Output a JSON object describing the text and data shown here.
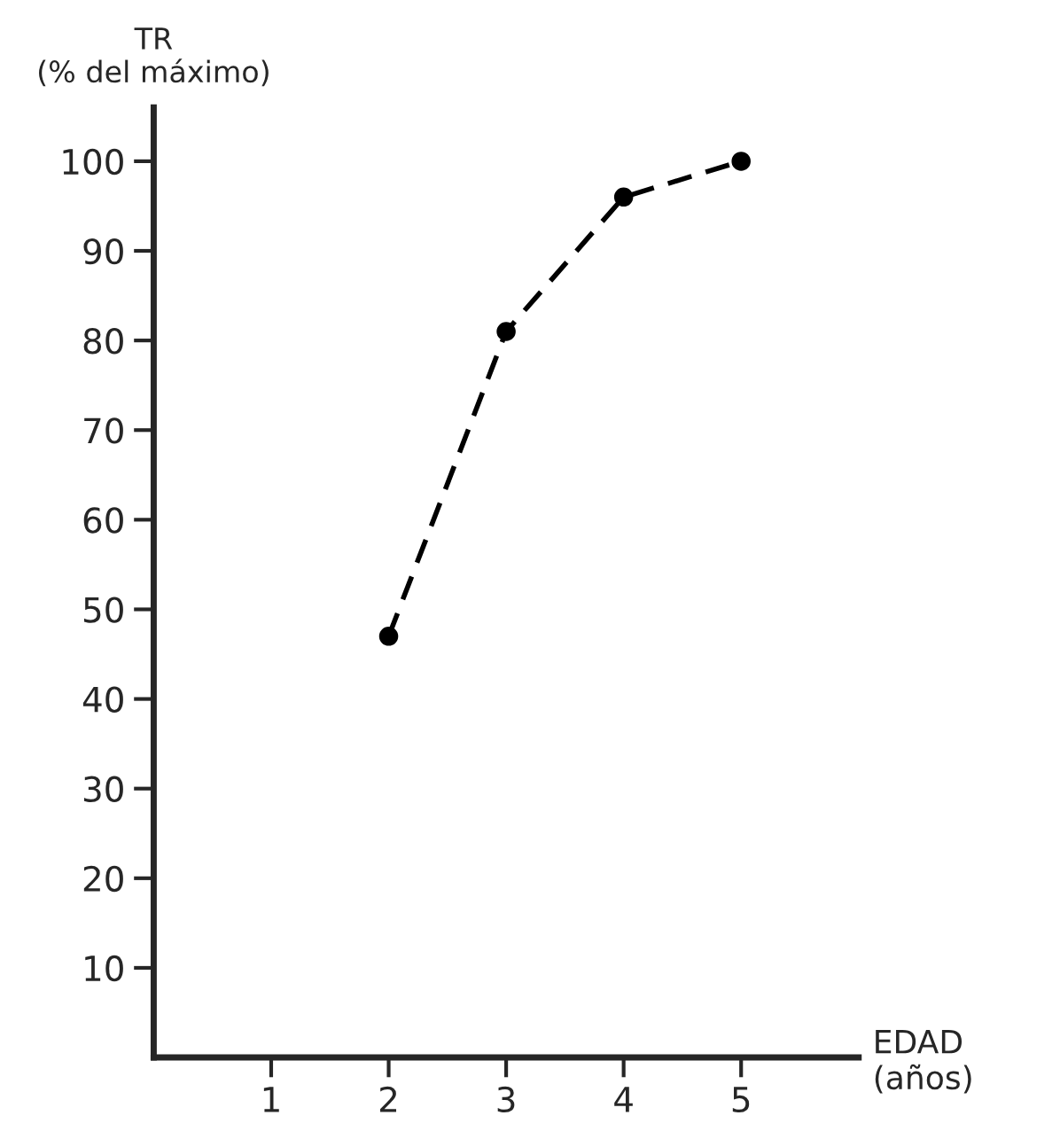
{
  "chart_data": {
    "type": "line",
    "xlabel": "EDAD\n(años)",
    "ylabel": "TR\n(% del máximo)",
    "x": [
      2,
      3,
      4,
      5
    ],
    "series": [
      {
        "color": "#000000",
        "values": [
          47,
          81,
          96,
          100
        ]
      }
    ],
    "xlim": [
      0,
      6
    ],
    "xticks": [
      1,
      2,
      3,
      4,
      5
    ],
    "ylim": [
      0,
      106
    ],
    "yticks": [
      10,
      20,
      30,
      40,
      50,
      60,
      70,
      80,
      90,
      100
    ],
    "marker": "circle",
    "line_style": "dashed",
    "grid": false
  }
}
